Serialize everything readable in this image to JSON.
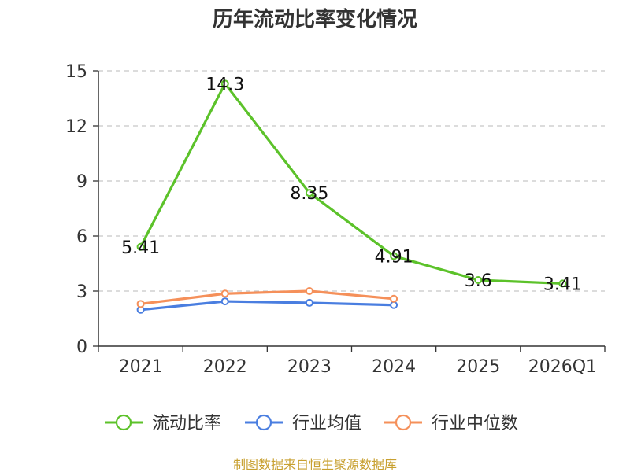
{
  "chart_data": {
    "type": "line",
    "title": "历年流动比率变化情况",
    "categories": [
      "2021",
      "2022",
      "2023",
      "2024",
      "2025",
      "2026Q1"
    ],
    "ylim": [
      0,
      15
    ],
    "yticks": [
      "0",
      "3",
      "6",
      "9",
      "12",
      "15"
    ],
    "grid": true,
    "legend_position": "bottom",
    "series": [
      {
        "name": "流动比率",
        "color": "#5cc22a",
        "values": [
          5.41,
          14.3,
          8.35,
          4.91,
          3.6,
          3.41
        ],
        "labels": [
          "5.41",
          "14.3",
          "8.35",
          "4.91",
          "3.6",
          "3.41"
        ]
      },
      {
        "name": "行业均值",
        "color": "#4a7ee0",
        "values": [
          1.98,
          2.44,
          2.36,
          2.24,
          null,
          null
        ]
      },
      {
        "name": "行业中位数",
        "color": "#f5905a",
        "values": [
          2.3,
          2.86,
          3.0,
          2.58,
          null,
          null
        ]
      }
    ],
    "source": "制图数据来自恒生聚源数据库"
  }
}
